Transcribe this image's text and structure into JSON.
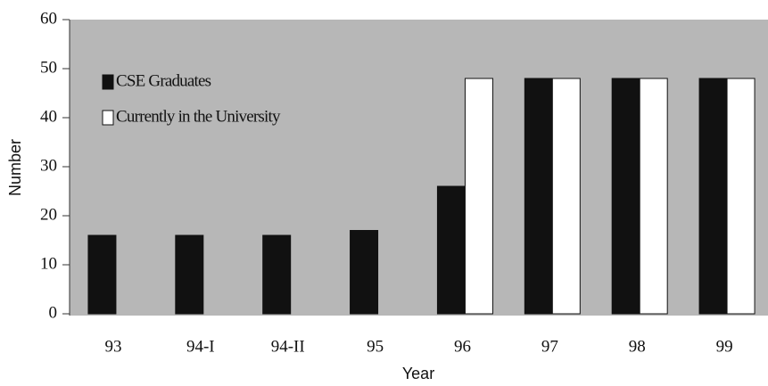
{
  "chart_data": {
    "type": "bar",
    "xlabel": "Year",
    "ylabel": "Number",
    "categories": [
      "93",
      "94-I",
      "94-II",
      "95",
      "96",
      "97",
      "98",
      "99"
    ],
    "series": [
      {
        "name": "CSE Graduates",
        "color": "#111111",
        "values": [
          16,
          16,
          16,
          17,
          26,
          48,
          48,
          48
        ]
      },
      {
        "name": "Currently in the University",
        "color": "#ffffff",
        "values": [
          null,
          null,
          null,
          null,
          48,
          48,
          48,
          48
        ]
      }
    ],
    "ylim": [
      0,
      60
    ],
    "yticks": [
      0,
      10,
      20,
      30,
      40,
      50,
      60
    ],
    "legend": "upper left",
    "grid": false
  }
}
